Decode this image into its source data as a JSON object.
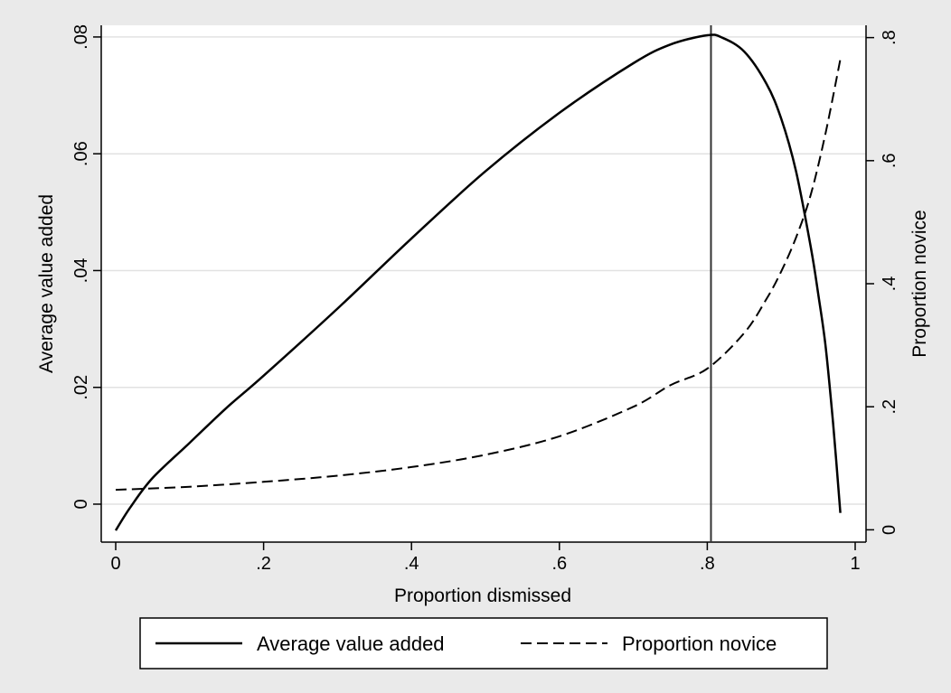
{
  "chart_data": {
    "type": "line",
    "xlabel": "Proportion dismissed",
    "ylabel_left": "Average value added",
    "ylabel_right": "Proportion novice",
    "xlim": [
      0,
      1
    ],
    "ylim_left": [
      -0.0065,
      0.082
    ],
    "ylim_right": [
      -0.02,
      0.82
    ],
    "grid": "horizontal at left-axis ticks",
    "x_ticks": [
      {
        "value": 0,
        "label": "0"
      },
      {
        "value": 0.2,
        "label": ".2"
      },
      {
        "value": 0.4,
        "label": ".4"
      },
      {
        "value": 0.6,
        "label": ".6"
      },
      {
        "value": 0.8,
        "label": ".8"
      },
      {
        "value": 1,
        "label": "1"
      }
    ],
    "y_left_ticks": [
      {
        "value": 0,
        "label": "0"
      },
      {
        "value": 0.02,
        "label": ".02"
      },
      {
        "value": 0.04,
        "label": ".04"
      },
      {
        "value": 0.06,
        "label": ".06"
      },
      {
        "value": 0.08,
        "label": ".08"
      }
    ],
    "y_right_ticks": [
      {
        "value": 0,
        "label": "0"
      },
      {
        "value": 0.2,
        "label": ".2"
      },
      {
        "value": 0.4,
        "label": ".4"
      },
      {
        "value": 0.6,
        "label": ".6"
      },
      {
        "value": 0.8,
        "label": ".8"
      }
    ],
    "vertical_line_x": 0.805,
    "legend_position": "bottom",
    "series": [
      {
        "name": "Average value added",
        "axis": "left",
        "style": "solid",
        "color": "#000000",
        "x": [
          0,
          0.02,
          0.05,
          0.1,
          0.15,
          0.2,
          0.3,
          0.4,
          0.5,
          0.6,
          0.7,
          0.75,
          0.8,
          0.82,
          0.85,
          0.88,
          0.9,
          0.92,
          0.94,
          0.95,
          0.96,
          0.97,
          0.98
        ],
        "values": [
          -0.0045,
          -0.0005,
          0.0045,
          0.0105,
          0.0165,
          0.022,
          0.0335,
          0.0455,
          0.057,
          0.067,
          0.0755,
          0.0787,
          0.0803,
          0.0799,
          0.0775,
          0.072,
          0.066,
          0.057,
          0.044,
          0.036,
          0.027,
          0.014,
          -0.0015
        ]
      },
      {
        "name": "Proportion novice",
        "axis": "right",
        "style": "dashed",
        "color": "#000000",
        "x": [
          0,
          0.1,
          0.2,
          0.3,
          0.4,
          0.5,
          0.6,
          0.7,
          0.75,
          0.8,
          0.85,
          0.88,
          0.9,
          0.92,
          0.94,
          0.96,
          0.98
        ],
        "values": [
          0.065,
          0.07,
          0.078,
          0.088,
          0.102,
          0.122,
          0.152,
          0.2,
          0.235,
          0.262,
          0.32,
          0.375,
          0.42,
          0.475,
          0.545,
          0.645,
          0.765
        ]
      }
    ]
  }
}
